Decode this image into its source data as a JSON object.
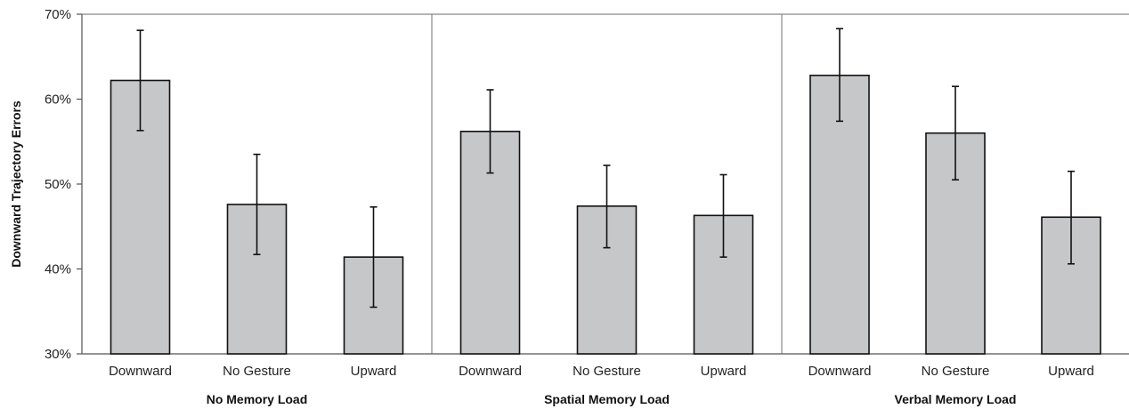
{
  "chart_data": {
    "type": "bar",
    "ylabel": "Downward Trajectory Errors",
    "ylim": [
      30,
      70
    ],
    "yticks": [
      "30%",
      "40%",
      "50%",
      "60%",
      "70%"
    ],
    "ytick_values": [
      30,
      40,
      50,
      60,
      70
    ],
    "grid": false,
    "bar_color": "#c6c7c9",
    "categories": [
      "Downward",
      "No Gesture",
      "Upward"
    ],
    "panels": [
      {
        "title": "No Memory Load",
        "values": [
          62.2,
          47.6,
          41.4
        ],
        "error_low": [
          56.3,
          41.7,
          35.5
        ],
        "error_high": [
          68.1,
          53.5,
          47.3
        ]
      },
      {
        "title": "Spatial Memory Load",
        "values": [
          56.2,
          47.4,
          46.3
        ],
        "error_low": [
          51.3,
          42.5,
          41.4
        ],
        "error_high": [
          61.1,
          52.2,
          51.1
        ]
      },
      {
        "title": "Verbal Memory Load",
        "values": [
          62.8,
          56.0,
          46.1
        ],
        "error_low": [
          57.4,
          50.5,
          40.6
        ],
        "error_high": [
          68.3,
          61.5,
          51.5
        ]
      }
    ]
  }
}
